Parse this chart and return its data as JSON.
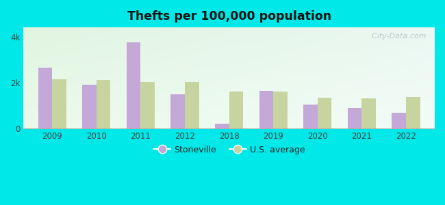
{
  "title": "Thefts per 100,000 population",
  "years": [
    2009,
    2010,
    2011,
    2012,
    2018,
    2019,
    2020,
    2021,
    2022
  ],
  "stoneville": [
    2650,
    1900,
    3750,
    1500,
    200,
    1650,
    1050,
    900,
    680
  ],
  "us_average": [
    2150,
    2100,
    2030,
    2030,
    1600,
    1620,
    1350,
    1300,
    1380
  ],
  "stoneville_color": "#c4a8d8",
  "us_color": "#c8d4a0",
  "background_outer": "#00e8e8",
  "ylim": [
    0,
    4400
  ],
  "yticks": [
    0,
    2000,
    4000
  ],
  "ytick_labels": [
    "0",
    "2k",
    "4k"
  ],
  "bar_width": 0.32,
  "legend_stoneville": "Stoneville",
  "legend_us": "U.S. average",
  "watermark": "  City-Data.com"
}
